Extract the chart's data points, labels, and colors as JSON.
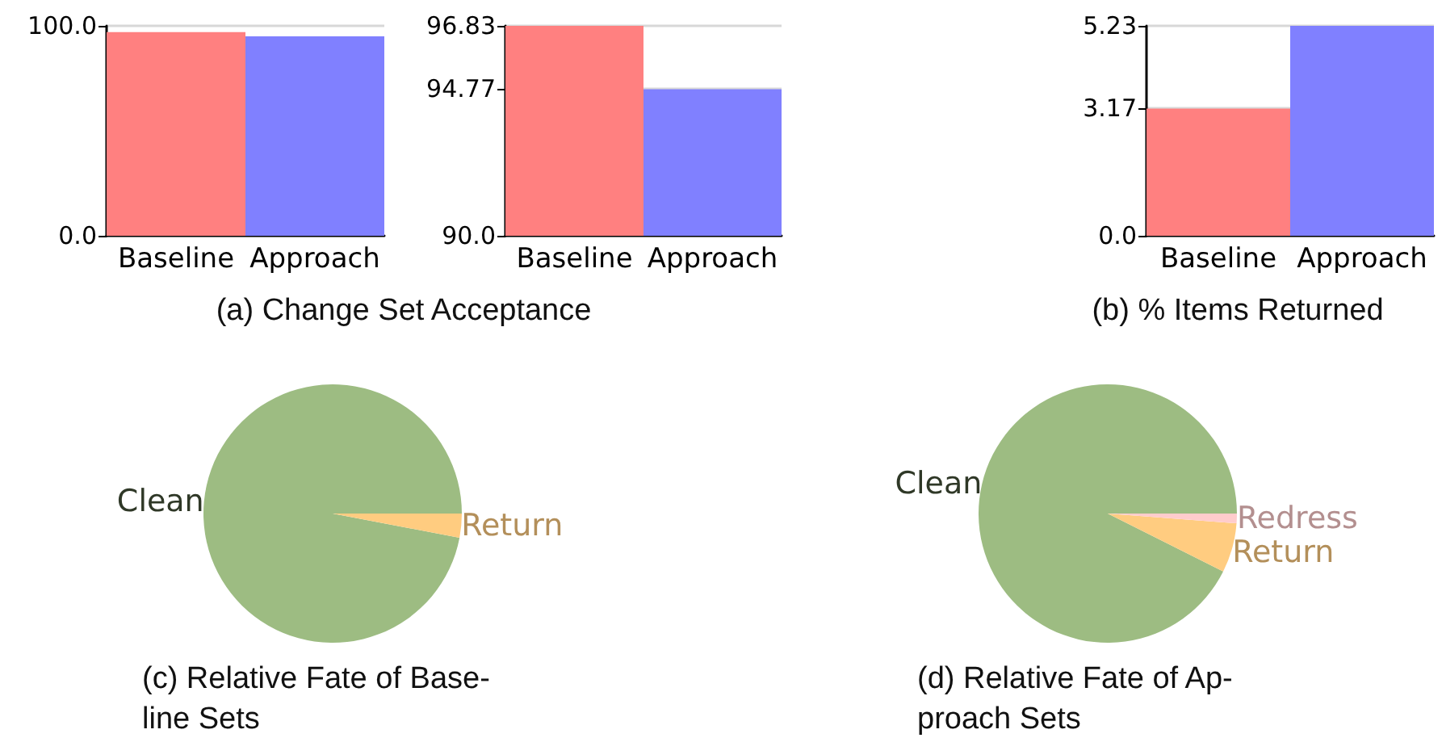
{
  "chart_data": [
    {
      "type": "bar",
      "title": "(a) Change Set Acceptance",
      "categories": [
        "Baseline",
        "Approach"
      ],
      "values": [
        97,
        95
      ],
      "colors": [
        "#ff8080",
        "#8080ff"
      ],
      "ylim": [
        0,
        100
      ],
      "yticks": [
        {
          "value": 0,
          "label": "0.0"
        },
        {
          "value": 100,
          "label": "100.0"
        }
      ],
      "grid": "y"
    },
    {
      "type": "bar",
      "categories": [
        "Baseline",
        "Approach"
      ],
      "values": [
        96.83,
        94.77
      ],
      "colors": [
        "#ff8080",
        "#8080ff"
      ],
      "ylim": [
        90,
        96.83
      ],
      "yticks": [
        {
          "value": 90,
          "label": "90.0"
        },
        94.77,
        96.83
      ],
      "grid": "y"
    },
    {
      "type": "bar",
      "title": "(b) % Items Returned",
      "categories": [
        "Baseline",
        "Approach"
      ],
      "values": [
        3.17,
        5.23
      ],
      "colors": [
        "#ff8080",
        "#8080ff"
      ],
      "ylim": [
        0,
        5.23
      ],
      "yticks": [
        {
          "value": 0,
          "label": "0.0"
        },
        3.17,
        5.23
      ],
      "grid": "y"
    },
    {
      "type": "pie",
      "title": "(c) Relative Fate of Base-\nline Sets",
      "categories": [
        "Clean",
        "Return"
      ],
      "values": [
        97,
        3
      ],
      "colors": [
        "#9dbc82",
        "#ffcc80"
      ]
    },
    {
      "type": "pie",
      "title": "(d) Relative Fate of Ap-\nproach Sets",
      "categories": [
        "Clean",
        "Return",
        "Redress"
      ],
      "values": [
        92.6,
        6.2,
        1.2
      ],
      "colors": [
        "#9dbc82",
        "#ffcc80",
        "#ffcccc"
      ]
    }
  ]
}
